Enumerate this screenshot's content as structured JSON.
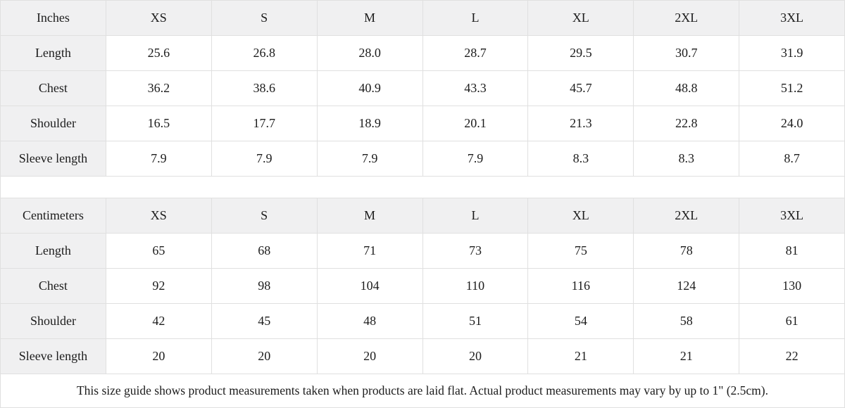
{
  "inches": {
    "unit_label": "Inches",
    "sizes": [
      "XS",
      "S",
      "M",
      "L",
      "XL",
      "2XL",
      "3XL"
    ],
    "rows": [
      {
        "label": "Length",
        "values": [
          "25.6",
          "26.8",
          "28.0",
          "28.7",
          "29.5",
          "30.7",
          "31.9"
        ]
      },
      {
        "label": "Chest",
        "values": [
          "36.2",
          "38.6",
          "40.9",
          "43.3",
          "45.7",
          "48.8",
          "51.2"
        ]
      },
      {
        "label": "Shoulder",
        "values": [
          "16.5",
          "17.7",
          "18.9",
          "20.1",
          "21.3",
          "22.8",
          "24.0"
        ]
      },
      {
        "label": "Sleeve length",
        "values": [
          "7.9",
          "7.9",
          "7.9",
          "7.9",
          "8.3",
          "8.3",
          "8.7"
        ]
      }
    ]
  },
  "centimeters": {
    "unit_label": "Centimeters",
    "sizes": [
      "XS",
      "S",
      "M",
      "L",
      "XL",
      "2XL",
      "3XL"
    ],
    "rows": [
      {
        "label": "Length",
        "values": [
          "65",
          "68",
          "71",
          "73",
          "75",
          "78",
          "81"
        ]
      },
      {
        "label": "Chest",
        "values": [
          "92",
          "98",
          "104",
          "110",
          "116",
          "124",
          "130"
        ]
      },
      {
        "label": "Shoulder",
        "values": [
          "42",
          "45",
          "48",
          "51",
          "54",
          "58",
          "61"
        ]
      },
      {
        "label": "Sleeve length",
        "values": [
          "20",
          "20",
          "20",
          "20",
          "21",
          "21",
          "22"
        ]
      }
    ]
  },
  "footer_note": "This size guide shows product measurements taken when products are laid flat.  Actual product measurements may vary by up to 1\" (2.5cm).",
  "colors": {
    "header_bg": "#f0f0f1",
    "border": "#e0e0e0",
    "text": "#1c1c1c"
  }
}
